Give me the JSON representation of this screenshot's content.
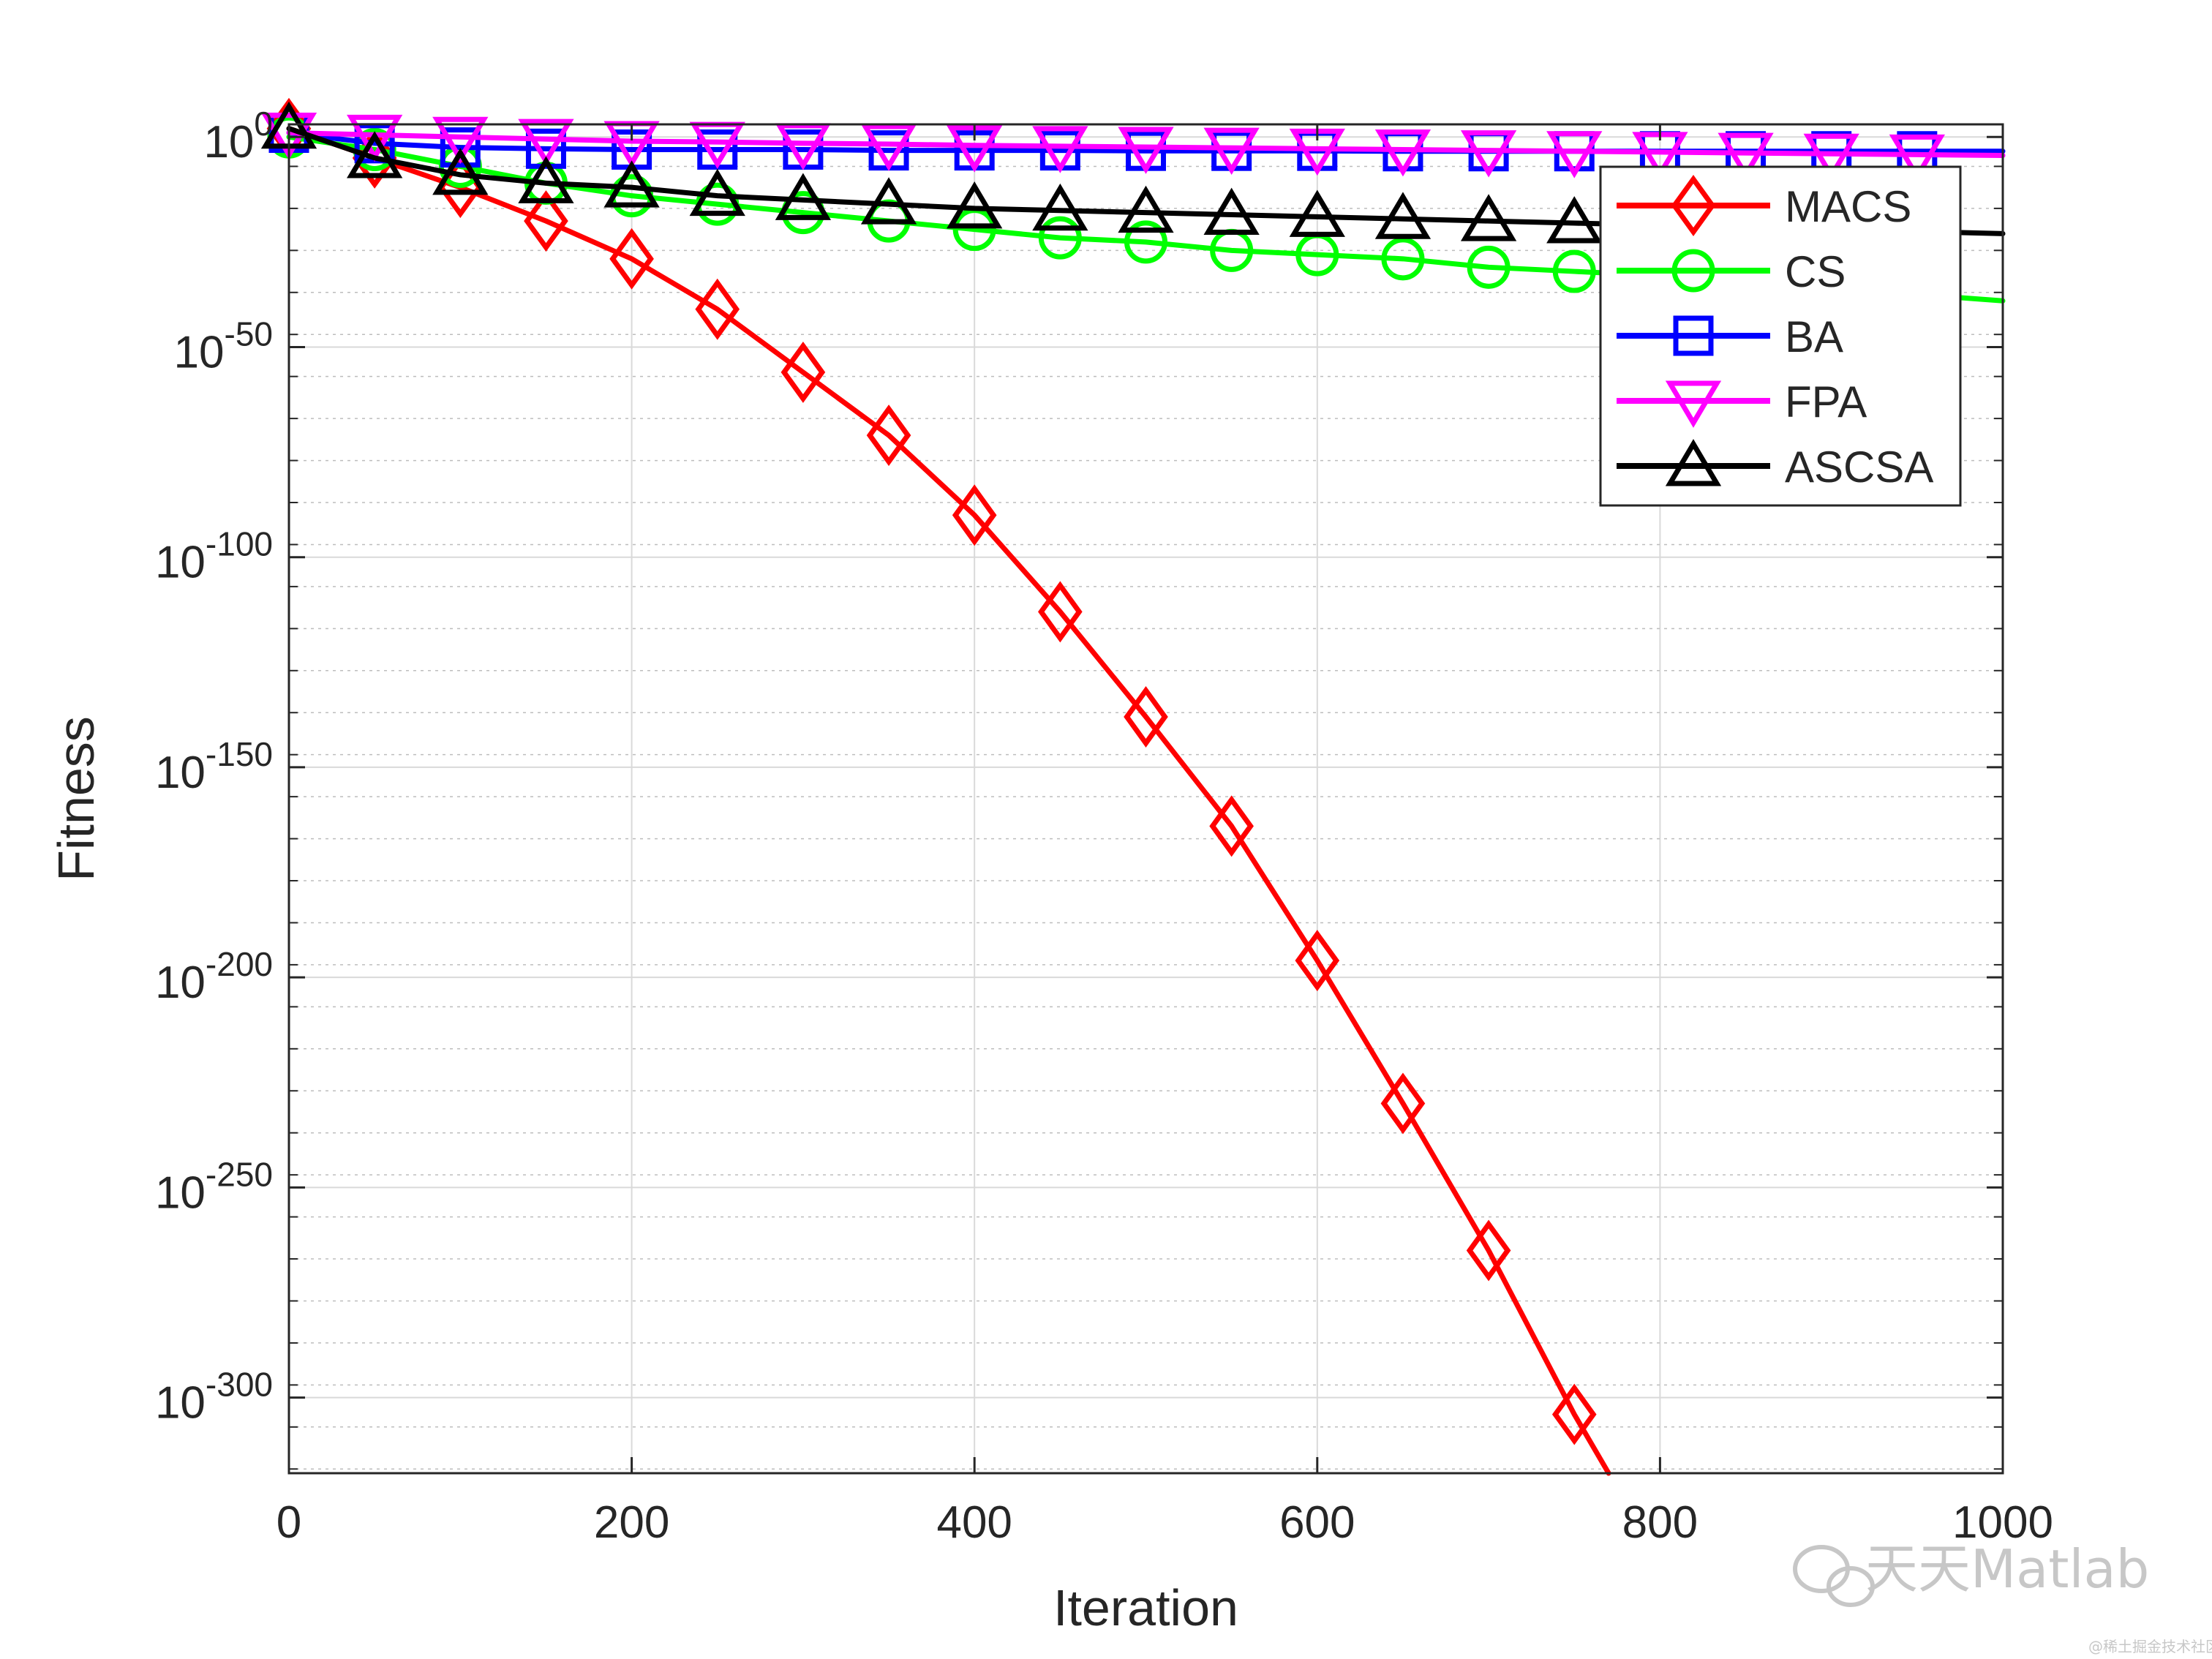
{
  "chart_data": {
    "type": "line",
    "title": "",
    "xlabel": "Iteration",
    "ylabel": "Fitness",
    "xlim": [
      0,
      1000
    ],
    "ylim_log10": [
      -318,
      3
    ],
    "y_scale": "log",
    "grid": true,
    "legend_position": "top-right",
    "x_ticks": [
      {
        "value": 0,
        "label": "0"
      },
      {
        "value": 200,
        "label": "200"
      },
      {
        "value": 400,
        "label": "400"
      },
      {
        "value": 600,
        "label": "600"
      },
      {
        "value": 800,
        "label": "800"
      },
      {
        "value": 1000,
        "label": "1000"
      }
    ],
    "y_ticks": [
      {
        "exp": 0,
        "base": "10",
        "sup": "0"
      },
      {
        "exp": -50,
        "base": "10",
        "sup": "-50"
      },
      {
        "exp": -100,
        "base": "10",
        "sup": "-100"
      },
      {
        "exp": -150,
        "base": "10",
        "sup": "-150"
      },
      {
        "exp": -200,
        "base": "10",
        "sup": "-200"
      },
      {
        "exp": -250,
        "base": "10",
        "sup": "-250"
      },
      {
        "exp": -300,
        "base": "10",
        "sup": "-300"
      }
    ],
    "series": [
      {
        "name": "MACS",
        "color": "#ff0000",
        "marker": "diamond",
        "x": [
          0,
          50,
          100,
          150,
          200,
          250,
          300,
          350,
          400,
          450,
          500,
          550,
          600,
          650,
          700,
          750,
          770
        ],
        "log10_y": [
          2,
          -5,
          -12,
          -20,
          -29,
          -41,
          -56,
          -71,
          -90,
          -113,
          -138,
          -164,
          -196,
          -230,
          -265,
          -304,
          -318
        ]
      },
      {
        "name": "CS",
        "color": "#00ff00",
        "marker": "circle",
        "x": [
          0,
          50,
          100,
          150,
          200,
          250,
          300,
          350,
          400,
          450,
          500,
          550,
          600,
          650,
          700,
          750,
          800,
          900,
          1000
        ],
        "log10_y": [
          0,
          -3,
          -7,
          -11,
          -14,
          -16,
          -18,
          -20,
          -22,
          -24,
          -25,
          -27,
          -28,
          -29,
          -31,
          -32,
          -33,
          -36,
          -39
        ]
      },
      {
        "name": "BA",
        "color": "#0000ff",
        "marker": "square",
        "x": [
          0,
          50,
          100,
          150,
          200,
          250,
          300,
          350,
          400,
          450,
          500,
          550,
          600,
          650,
          700,
          750,
          800,
          850,
          900,
          950,
          1000
        ],
        "log10_y": [
          1,
          -1.5,
          -2.5,
          -2.8,
          -3,
          -3,
          -3,
          -3.2,
          -3.2,
          -3.2,
          -3.3,
          -3.3,
          -3.3,
          -3.4,
          -3.4,
          -3.4,
          -3.4,
          -3.4,
          -3.4,
          -3.4,
          -3.4
        ]
      },
      {
        "name": "FPA",
        "color": "#ff00ff",
        "marker": "triangle-down",
        "x": [
          0,
          50,
          100,
          150,
          200,
          250,
          300,
          350,
          400,
          450,
          500,
          550,
          600,
          650,
          700,
          750,
          800,
          850,
          900,
          950,
          1000
        ],
        "log10_y": [
          1,
          0.5,
          0,
          -0.5,
          -1,
          -1.2,
          -1.5,
          -1.7,
          -2,
          -2.2,
          -2.4,
          -2.6,
          -2.8,
          -3,
          -3.2,
          -3.4,
          -3.6,
          -3.8,
          -4,
          -4.2,
          -4.4
        ]
      },
      {
        "name": "ASCSA",
        "color": "#000000",
        "marker": "triangle-up",
        "x": [
          0,
          50,
          100,
          150,
          200,
          250,
          300,
          350,
          400,
          450,
          500,
          550,
          600,
          650,
          700,
          750,
          800,
          850,
          900,
          950,
          1000
        ],
        "log10_y": [
          2,
          -5,
          -9,
          -11,
          -12,
          -14,
          -15,
          -16,
          -17,
          -17.5,
          -18,
          -18.5,
          -19,
          -19.5,
          -20,
          -20.5,
          -21,
          -21.5,
          -22,
          -22.5,
          -23
        ]
      }
    ]
  },
  "watermark": {
    "main": "天天Matlab",
    "sub": "@稀土掘金技术社区"
  }
}
